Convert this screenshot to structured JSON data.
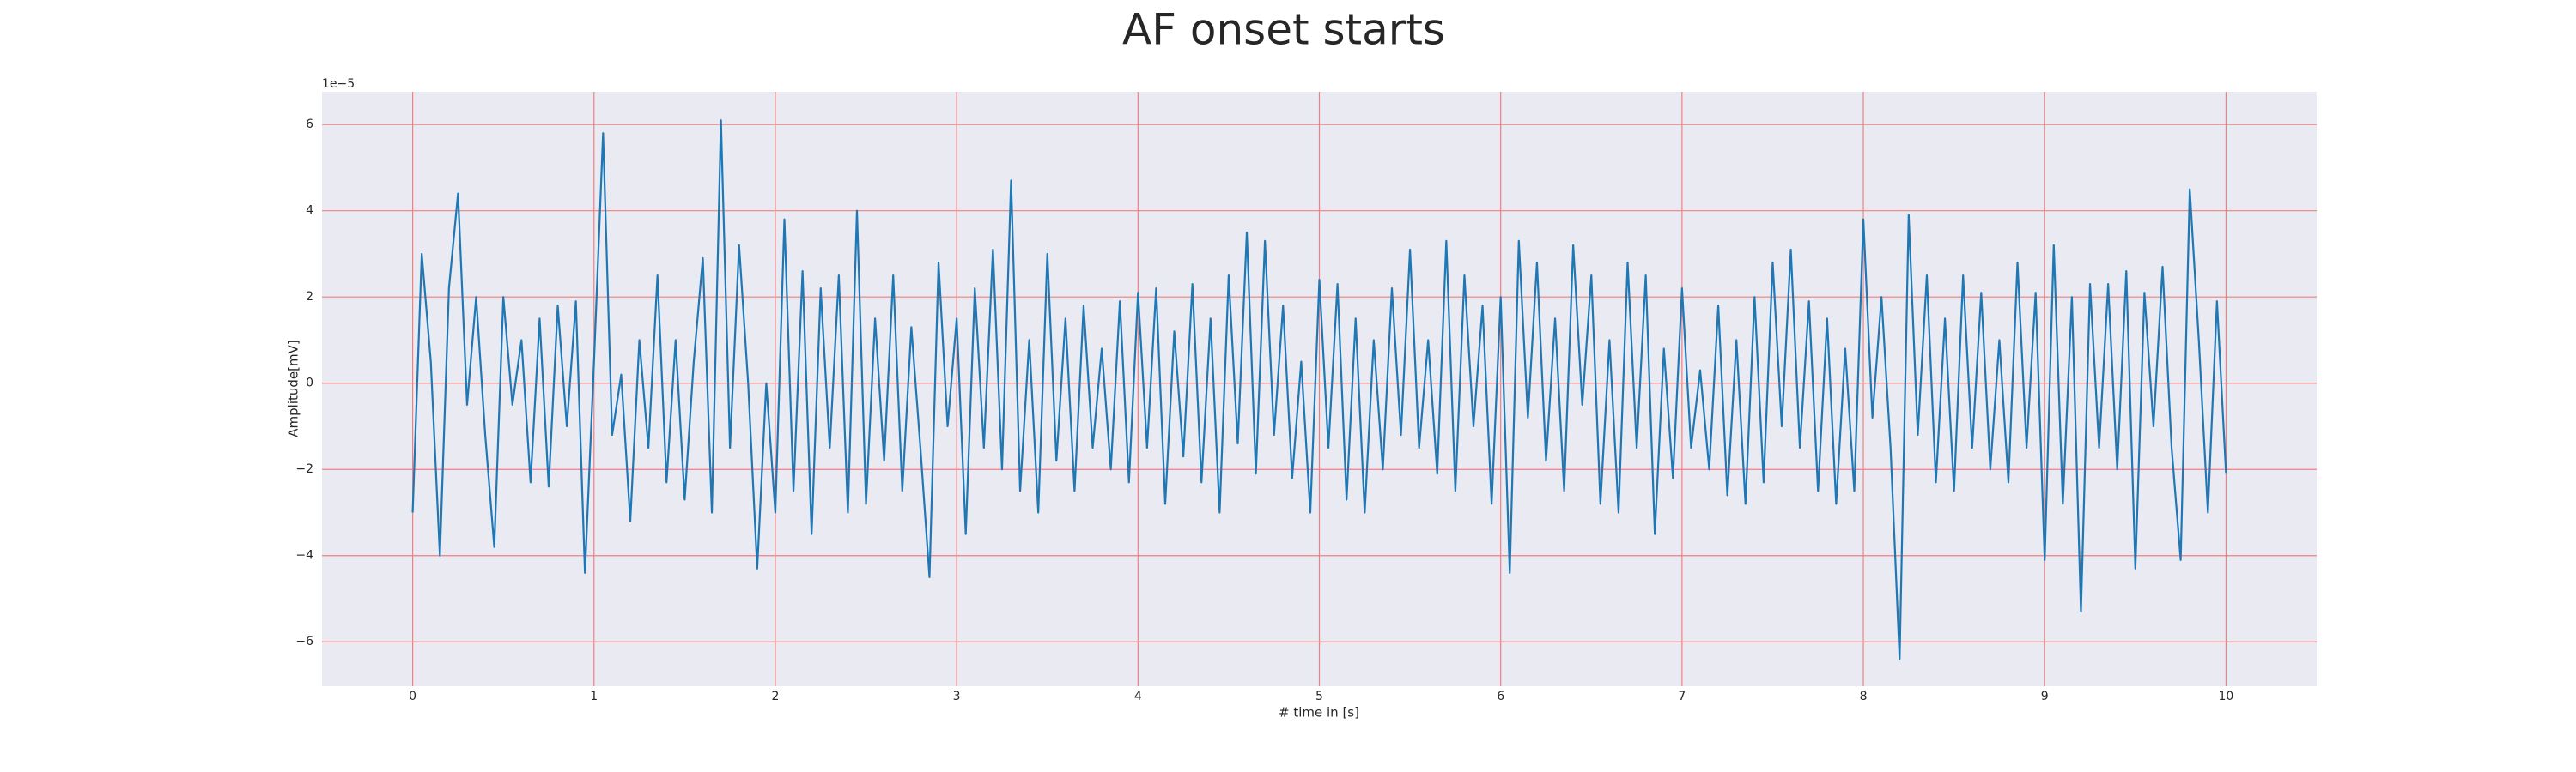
{
  "chart_data": {
    "type": "line",
    "title": "AF onset starts",
    "xlabel": "# time in [s]",
    "ylabel": "Amplitude[mV]",
    "y_offset_label": "1e−5",
    "color": "#1f77b4",
    "grid": true,
    "grid_color": "#f08080",
    "background": "#eaeaf2",
    "xlim": [
      -0.5,
      10.5
    ],
    "ylim": [
      -7.03,
      6.76
    ],
    "xticks": [
      0,
      1,
      2,
      3,
      4,
      5,
      6,
      7,
      8,
      9,
      10
    ],
    "yticks": [
      {
        "value": -6,
        "label": "−6"
      },
      {
        "value": -4,
        "label": "−4"
      },
      {
        "value": -2,
        "label": "−2"
      },
      0,
      2,
      4,
      6
    ],
    "x": [
      0,
      0.05,
      0.1,
      0.15,
      0.2,
      0.25,
      0.3,
      0.35,
      0.4,
      0.45,
      0.5,
      0.55,
      0.6,
      0.65,
      0.7,
      0.75,
      0.8,
      0.85,
      0.9,
      0.95,
      1,
      1.05,
      1.1,
      1.15,
      1.2,
      1.25,
      1.3,
      1.35,
      1.4,
      1.45,
      1.5,
      1.55,
      1.6,
      1.65,
      1.7,
      1.75,
      1.8,
      1.85,
      1.9,
      1.95,
      2,
      2.05,
      2.1,
      2.15,
      2.2,
      2.25,
      2.3,
      2.35,
      2.4,
      2.45,
      2.5,
      2.55,
      2.6,
      2.65,
      2.7,
      2.75,
      2.8,
      2.85,
      2.9,
      2.95,
      3,
      3.05,
      3.1,
      3.15,
      3.2,
      3.25,
      3.3,
      3.35,
      3.4,
      3.45,
      3.5,
      3.55,
      3.6,
      3.65,
      3.7,
      3.75,
      3.8,
      3.85,
      3.9,
      3.95,
      4,
      4.05,
      4.1,
      4.15,
      4.2,
      4.25,
      4.3,
      4.35,
      4.4,
      4.45,
      4.5,
      4.55,
      4.6,
      4.65,
      4.7,
      4.75,
      4.8,
      4.85,
      4.9,
      4.95,
      5,
      5.05,
      5.1,
      5.15,
      5.2,
      5.25,
      5.3,
      5.35,
      5.4,
      5.45,
      5.5,
      5.55,
      5.6,
      5.65,
      5.7,
      5.75,
      5.8,
      5.85,
      5.9,
      5.95,
      6,
      6.05,
      6.1,
      6.15,
      6.2,
      6.25,
      6.3,
      6.35,
      6.4,
      6.45,
      6.5,
      6.55,
      6.6,
      6.65,
      6.7,
      6.75,
      6.8,
      6.85,
      6.9,
      6.95,
      7,
      7.05,
      7.1,
      7.15,
      7.2,
      7.25,
      7.3,
      7.35,
      7.4,
      7.45,
      7.5,
      7.55,
      7.6,
      7.65,
      7.7,
      7.75,
      7.8,
      7.85,
      7.9,
      7.95,
      8,
      8.05,
      8.1,
      8.15,
      8.2,
      8.25,
      8.3,
      8.35,
      8.4,
      8.45,
      8.5,
      8.55,
      8.6,
      8.65,
      8.7,
      8.75,
      8.8,
      8.85,
      8.9,
      8.95,
      9,
      9.05,
      9.1,
      9.15,
      9.2,
      9.25,
      9.3,
      9.35,
      9.4,
      9.45,
      9.5,
      9.55,
      9.6,
      9.65,
      9.7,
      9.75,
      9.8,
      9.85,
      9.9,
      9.95,
      10
    ],
    "values": [
      -3.0,
      3.0,
      0.5,
      -4.0,
      2.2,
      4.4,
      -0.5,
      2.0,
      -1.2,
      -3.8,
      2.0,
      -0.5,
      1.0,
      -2.3,
      1.5,
      -2.4,
      1.8,
      -1.0,
      1.9,
      -4.4,
      0.5,
      5.8,
      -1.2,
      0.2,
      -3.2,
      1.0,
      -1.5,
      2.5,
      -2.3,
      1.0,
      -2.7,
      0.5,
      2.9,
      -3.0,
      6.1,
      -1.5,
      3.2,
      0.0,
      -4.3,
      0.0,
      -3.0,
      3.8,
      -2.5,
      2.6,
      -3.5,
      2.2,
      -1.5,
      2.5,
      -3.0,
      4.0,
      -2.8,
      1.5,
      -1.8,
      2.5,
      -2.5,
      1.3,
      -1.5,
      -4.5,
      2.8,
      -1.0,
      1.5,
      -3.5,
      2.2,
      -1.5,
      3.1,
      -2.0,
      4.7,
      -2.5,
      1.0,
      -3.0,
      3.0,
      -1.8,
      1.5,
      -2.5,
      1.8,
      -1.5,
      0.8,
      -2.0,
      1.9,
      -2.3,
      2.1,
      -1.5,
      2.2,
      -2.8,
      1.2,
      -1.7,
      2.3,
      -2.3,
      1.5,
      -3.0,
      2.5,
      -1.4,
      3.5,
      -2.1,
      3.3,
      -1.2,
      1.8,
      -2.2,
      0.5,
      -3.0,
      2.4,
      -1.5,
      2.3,
      -2.7,
      1.5,
      -3.0,
      1.0,
      -2.0,
      2.2,
      -1.2,
      3.1,
      -1.5,
      1.0,
      -2.1,
      3.3,
      -2.5,
      2.5,
      -1.0,
      1.8,
      -2.8,
      2.0,
      -4.4,
      3.3,
      -0.8,
      2.8,
      -1.8,
      1.5,
      -2.5,
      3.2,
      -0.5,
      2.5,
      -2.8,
      1.0,
      -3.0,
      2.8,
      -1.5,
      2.5,
      -3.5,
      0.8,
      -2.2,
      2.2,
      -1.5,
      0.3,
      -2.0,
      1.8,
      -2.6,
      1.0,
      -2.8,
      2.0,
      -2.3,
      2.8,
      -1.0,
      3.1,
      -1.5,
      1.9,
      -2.5,
      1.5,
      -2.8,
      0.8,
      -2.5,
      3.8,
      -0.8,
      2.0,
      -1.5,
      -6.4,
      3.9,
      -1.2,
      2.5,
      -2.3,
      1.5,
      -2.5,
      2.5,
      -1.5,
      2.1,
      -2.0,
      1.0,
      -2.3,
      2.8,
      -1.5,
      2.1,
      -4.1,
      3.2,
      -2.8,
      2.0,
      -5.3,
      2.3,
      -1.5,
      2.3,
      -2.0,
      2.6,
      -4.3,
      2.1,
      -1.0,
      2.7,
      -1.5,
      -4.1,
      4.5,
      1.0,
      -3.0,
      1.9,
      -2.1
    ]
  }
}
